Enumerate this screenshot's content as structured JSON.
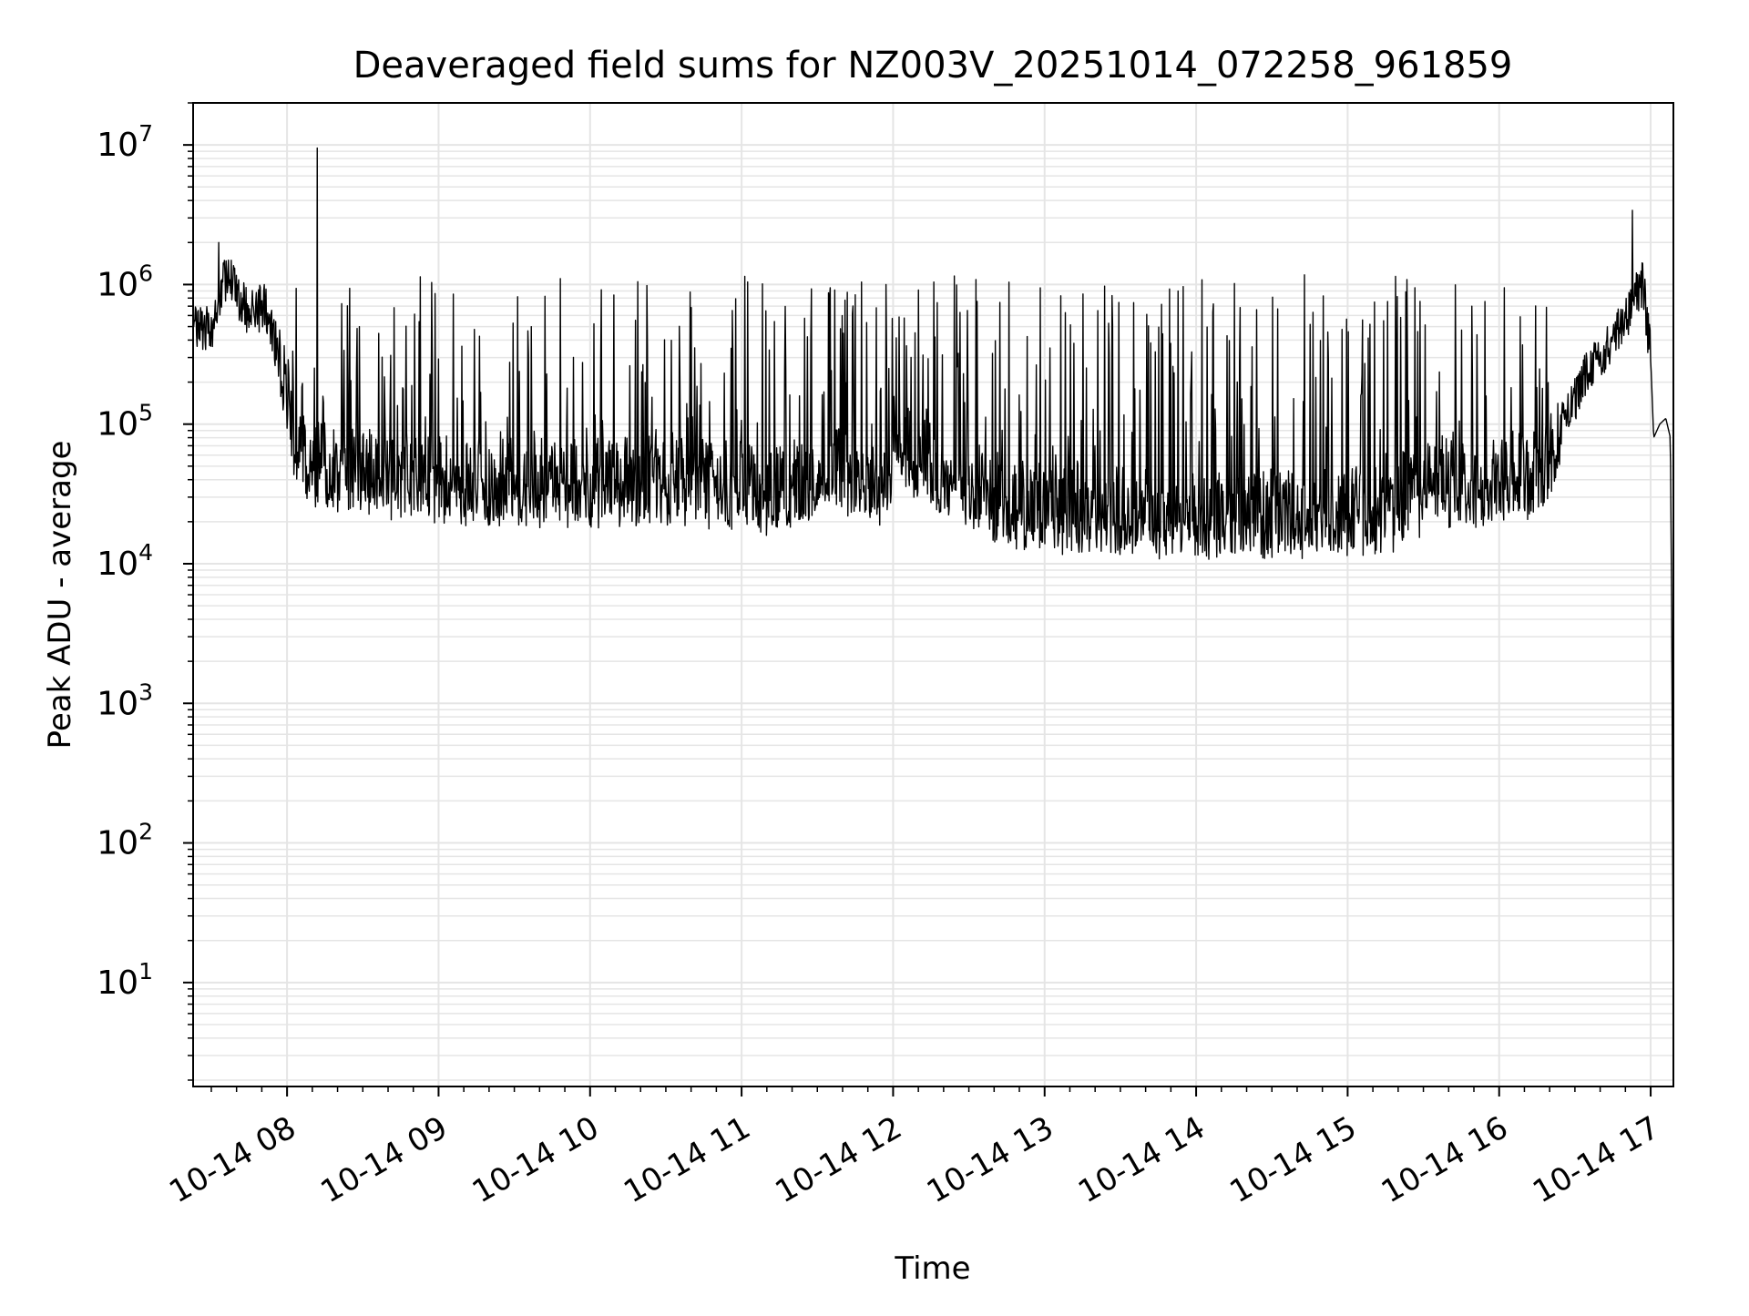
{
  "chart_data": {
    "type": "line",
    "title": "Deaveraged field sums for NZ003V_20251014_072258_961859",
    "xlabel": "Time",
    "ylabel": "Peak ADU - average",
    "yscale": "log",
    "ylim": [
      1.8,
      20000000
    ],
    "xlim_hours": [
      7.38,
      17.15
    ],
    "x_ticks": [
      {
        "hour": 8,
        "label": "10-14 08"
      },
      {
        "hour": 9,
        "label": "10-14 09"
      },
      {
        "hour": 10,
        "label": "10-14 10"
      },
      {
        "hour": 11,
        "label": "10-14 11"
      },
      {
        "hour": 12,
        "label": "10-14 12"
      },
      {
        "hour": 13,
        "label": "10-14 13"
      },
      {
        "hour": 14,
        "label": "10-14 14"
      },
      {
        "hour": 15,
        "label": "10-14 15"
      },
      {
        "hour": 16,
        "label": "10-14 16"
      },
      {
        "hour": 17,
        "label": "10-14 17"
      }
    ],
    "y_ticks": [
      {
        "exp": 1,
        "base": "10",
        "sup": "1"
      },
      {
        "exp": 2,
        "base": "10",
        "sup": "2"
      },
      {
        "exp": 3,
        "base": "10",
        "sup": "3"
      },
      {
        "exp": 4,
        "base": "10",
        "sup": "4"
      },
      {
        "exp": 5,
        "base": "10",
        "sup": "5"
      },
      {
        "exp": 6,
        "base": "10",
        "sup": "6"
      },
      {
        "exp": 7,
        "base": "10",
        "sup": "7"
      }
    ],
    "grid": true,
    "line_color": "#000000",
    "grid_color": "#e5e5e5",
    "series": [
      {
        "name": "Peak ADU - average",
        "baseline": [
          [
            7.38,
            500000
          ],
          [
            7.5,
            500000
          ],
          [
            7.6,
            1200000
          ],
          [
            7.75,
            600000
          ],
          [
            7.85,
            700000
          ],
          [
            7.95,
            300000
          ],
          [
            8.02,
            150000
          ],
          [
            8.05,
            80000
          ],
          [
            8.1,
            60000
          ],
          [
            8.2,
            55000
          ],
          [
            8.4,
            50000
          ],
          [
            8.7,
            45000
          ],
          [
            9.0,
            42000
          ],
          [
            9.5,
            40000
          ],
          [
            10.0,
            40000
          ],
          [
            10.5,
            42000
          ],
          [
            11.0,
            38000
          ],
          [
            11.2,
            35000
          ],
          [
            11.4,
            40000
          ],
          [
            11.6,
            50000
          ],
          [
            11.8,
            45000
          ],
          [
            11.98,
            40000
          ],
          [
            12.0,
            80000
          ],
          [
            12.1,
            70000
          ],
          [
            12.2,
            60000
          ],
          [
            12.3,
            45000
          ],
          [
            12.5,
            35000
          ],
          [
            12.8,
            28000
          ],
          [
            13.0,
            25000
          ],
          [
            13.5,
            25000
          ],
          [
            14.0,
            22000
          ],
          [
            14.5,
            24000
          ],
          [
            15.0,
            25000
          ],
          [
            15.3,
            27000
          ],
          [
            15.5,
            35000
          ],
          [
            15.65,
            40000
          ],
          [
            15.8,
            40000
          ],
          [
            16.0,
            40000
          ],
          [
            16.3,
            50000
          ],
          [
            16.45,
            120000
          ],
          [
            16.6,
            250000
          ],
          [
            16.75,
            400000
          ],
          [
            16.9,
            800000
          ],
          [
            16.95,
            1000000
          ],
          [
            17.0,
            300000
          ],
          [
            17.02,
            80000
          ],
          [
            17.06,
            100000
          ],
          [
            17.1,
            110000
          ],
          [
            17.13,
            80000
          ],
          [
            17.14,
            3000
          ],
          [
            17.15,
            5
          ]
        ],
        "spikes": [
          {
            "hour": 8.2,
            "value": 9500000
          },
          {
            "hour": 16.88,
            "value": 3400000
          },
          {
            "hour": 7.55,
            "value": 2000000
          }
        ],
        "typical_spike_peak": 1000000,
        "typical_spike_trough": 20000
      }
    ]
  }
}
